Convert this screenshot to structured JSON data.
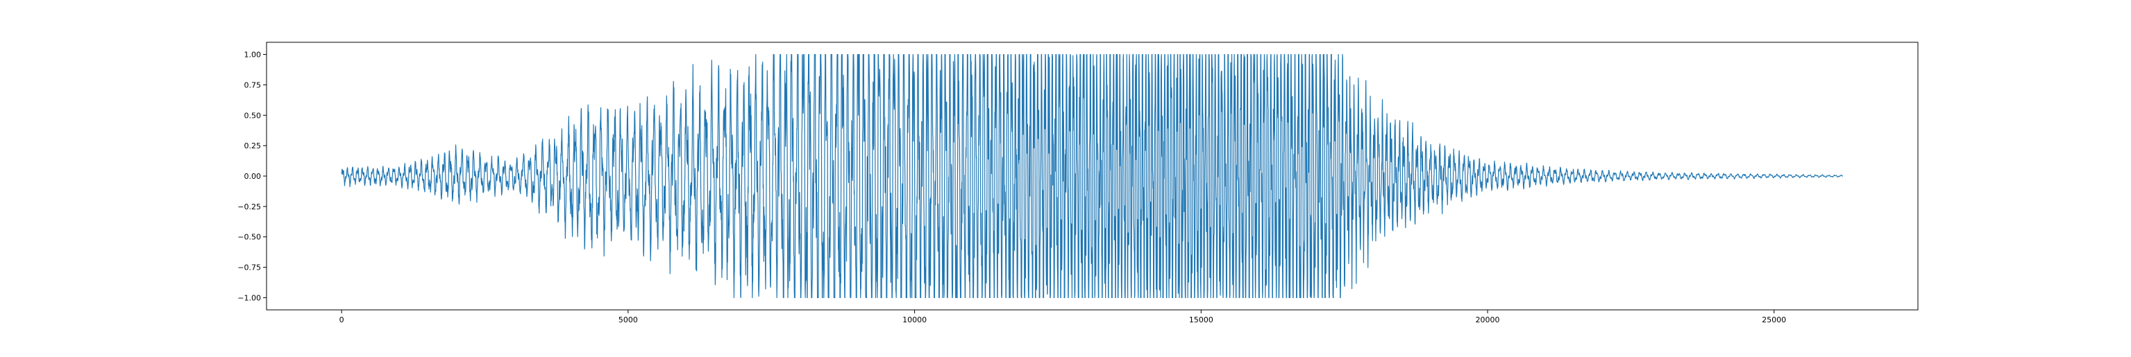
{
  "chart_data": {
    "type": "line",
    "title": "",
    "xlabel": "",
    "ylabel": "",
    "xlim": [
      -1310,
      27510
    ],
    "ylim": [
      -1.1,
      1.1
    ],
    "xticks": [
      0,
      5000,
      10000,
      15000,
      20000,
      25000
    ],
    "xtick_labels": [
      "0",
      "5000",
      "10000",
      "15000",
      "20000",
      "25000"
    ],
    "yticks": [
      -1.0,
      -0.75,
      -0.5,
      -0.25,
      0.0,
      0.25,
      0.5,
      0.75,
      1.0
    ],
    "ytick_labels": [
      "−1.00",
      "−0.75",
      "−0.50",
      "−0.25",
      "0.00",
      "0.25",
      "0.50",
      "0.75",
      "1.00"
    ],
    "grid": false,
    "legend": "none",
    "line_color": "#1f77b4",
    "sample_count": 26200,
    "series": [
      {
        "name": "",
        "envelope": {
          "x": [
            0,
            1000,
            2000,
            3000,
            3800,
            4200,
            5000,
            5500,
            6000,
            6500,
            7000,
            7500,
            7700,
            8000,
            9000,
            10000,
            11000,
            12000,
            13000,
            14000,
            15000,
            16000,
            17000,
            17300,
            17500,
            18000,
            18500,
            19000,
            20000,
            21000,
            22000,
            23000,
            24000,
            25000,
            26200
          ],
          "y": [
            0.05,
            0.05,
            0.15,
            0.08,
            0.25,
            0.4,
            0.38,
            0.42,
            0.5,
            0.55,
            0.65,
            0.72,
            0.8,
            1.0,
            1.0,
            1.0,
            1.0,
            1.0,
            1.0,
            1.0,
            1.0,
            1.0,
            1.0,
            1.0,
            0.6,
            0.4,
            0.3,
            0.2,
            0.08,
            0.05,
            0.03,
            0.02,
            0.015,
            0.01,
            0.005
          ]
        },
        "period_samples": 100
      }
    ]
  }
}
